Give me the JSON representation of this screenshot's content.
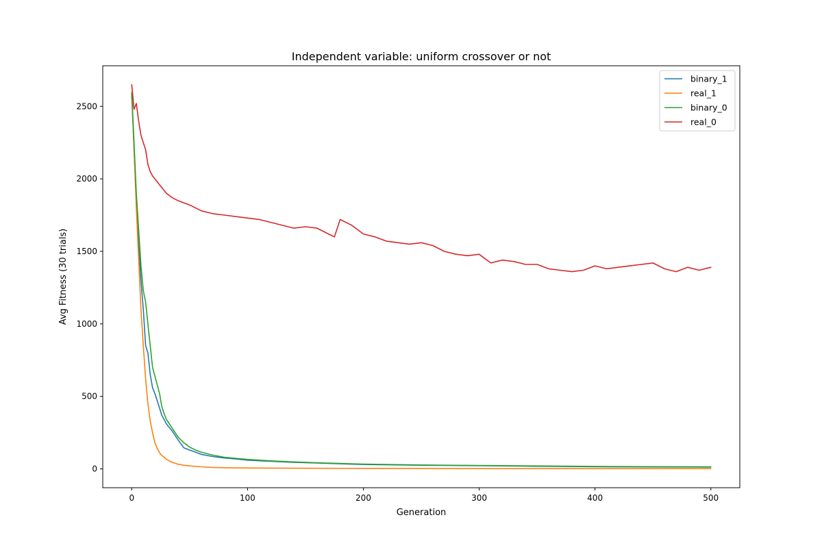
{
  "chart_data": {
    "type": "line",
    "title": "Independent variable: uniform crossover or not",
    "xlabel": "Generation",
    "ylabel": "Avg Fitness (30 trials)",
    "xlim": [
      -25,
      525
    ],
    "ylim": [
      -130,
      2780
    ],
    "xticks": [
      0,
      100,
      200,
      300,
      400,
      500
    ],
    "yticks": [
      0,
      500,
      1000,
      1500,
      2000,
      2500
    ],
    "grid": false,
    "legend_position": "top-right",
    "series": [
      {
        "name": "binary_1",
        "color": "#1f77b4",
        "points": [
          [
            0,
            2580
          ],
          [
            2,
            2200
          ],
          [
            4,
            1850
          ],
          [
            6,
            1550
          ],
          [
            8,
            1300
          ],
          [
            10,
            1100
          ],
          [
            12,
            850
          ],
          [
            14,
            800
          ],
          [
            16,
            650
          ],
          [
            18,
            560
          ],
          [
            20,
            520
          ],
          [
            22,
            470
          ],
          [
            24,
            420
          ],
          [
            26,
            370
          ],
          [
            28,
            340
          ],
          [
            30,
            310
          ],
          [
            35,
            260
          ],
          [
            40,
            200
          ],
          [
            45,
            145
          ],
          [
            50,
            130
          ],
          [
            55,
            115
          ],
          [
            60,
            100
          ],
          [
            70,
            85
          ],
          [
            80,
            75
          ],
          [
            90,
            68
          ],
          [
            100,
            60
          ],
          [
            120,
            52
          ],
          [
            140,
            45
          ],
          [
            160,
            40
          ],
          [
            180,
            35
          ],
          [
            200,
            30
          ],
          [
            250,
            25
          ],
          [
            300,
            22
          ],
          [
            350,
            18
          ],
          [
            400,
            15
          ],
          [
            450,
            13
          ],
          [
            500,
            12
          ]
        ]
      },
      {
        "name": "real_1",
        "color": "#ff7f0e",
        "points": [
          [
            0,
            2600
          ],
          [
            2,
            2200
          ],
          [
            4,
            1800
          ],
          [
            6,
            1450
          ],
          [
            8,
            1100
          ],
          [
            10,
            850
          ],
          [
            12,
            620
          ],
          [
            14,
            450
          ],
          [
            16,
            330
          ],
          [
            18,
            250
          ],
          [
            20,
            180
          ],
          [
            22,
            140
          ],
          [
            25,
            100
          ],
          [
            28,
            80
          ],
          [
            30,
            65
          ],
          [
            35,
            45
          ],
          [
            40,
            32
          ],
          [
            45,
            25
          ],
          [
            50,
            20
          ],
          [
            60,
            14
          ],
          [
            70,
            10
          ],
          [
            80,
            8
          ],
          [
            100,
            6
          ],
          [
            150,
            4
          ],
          [
            200,
            3
          ],
          [
            300,
            2
          ],
          [
            400,
            2
          ],
          [
            500,
            2
          ]
        ]
      },
      {
        "name": "binary_0",
        "color": "#2ca02c",
        "points": [
          [
            0,
            2590
          ],
          [
            2,
            2250
          ],
          [
            4,
            1900
          ],
          [
            6,
            1650
          ],
          [
            8,
            1400
          ],
          [
            10,
            1230
          ],
          [
            12,
            1150
          ],
          [
            14,
            1000
          ],
          [
            16,
            850
          ],
          [
            18,
            700
          ],
          [
            20,
            640
          ],
          [
            22,
            580
          ],
          [
            24,
            520
          ],
          [
            26,
            430
          ],
          [
            28,
            380
          ],
          [
            30,
            340
          ],
          [
            35,
            280
          ],
          [
            40,
            220
          ],
          [
            45,
            180
          ],
          [
            50,
            150
          ],
          [
            55,
            130
          ],
          [
            60,
            115
          ],
          [
            70,
            95
          ],
          [
            80,
            80
          ],
          [
            90,
            72
          ],
          [
            100,
            65
          ],
          [
            120,
            55
          ],
          [
            140,
            48
          ],
          [
            160,
            42
          ],
          [
            180,
            37
          ],
          [
            200,
            33
          ],
          [
            250,
            27
          ],
          [
            300,
            23
          ],
          [
            350,
            20
          ],
          [
            400,
            17
          ],
          [
            450,
            15
          ],
          [
            500,
            14
          ]
        ]
      },
      {
        "name": "real_0",
        "color": "#d62728",
        "points": [
          [
            0,
            2650
          ],
          [
            2,
            2480
          ],
          [
            4,
            2520
          ],
          [
            6,
            2400
          ],
          [
            8,
            2300
          ],
          [
            10,
            2250
          ],
          [
            12,
            2200
          ],
          [
            14,
            2100
          ],
          [
            16,
            2050
          ],
          [
            18,
            2020
          ],
          [
            20,
            2000
          ],
          [
            25,
            1950
          ],
          [
            30,
            1900
          ],
          [
            35,
            1870
          ],
          [
            40,
            1850
          ],
          [
            50,
            1820
          ],
          [
            60,
            1780
          ],
          [
            70,
            1760
          ],
          [
            80,
            1750
          ],
          [
            90,
            1740
          ],
          [
            100,
            1730
          ],
          [
            110,
            1720
          ],
          [
            120,
            1700
          ],
          [
            130,
            1680
          ],
          [
            140,
            1660
          ],
          [
            150,
            1670
          ],
          [
            160,
            1660
          ],
          [
            170,
            1620
          ],
          [
            175,
            1600
          ],
          [
            180,
            1720
          ],
          [
            190,
            1680
          ],
          [
            200,
            1620
          ],
          [
            210,
            1600
          ],
          [
            220,
            1570
          ],
          [
            230,
            1560
          ],
          [
            240,
            1550
          ],
          [
            250,
            1560
          ],
          [
            260,
            1540
          ],
          [
            270,
            1500
          ],
          [
            280,
            1480
          ],
          [
            290,
            1470
          ],
          [
            300,
            1480
          ],
          [
            310,
            1420
          ],
          [
            320,
            1440
          ],
          [
            330,
            1430
          ],
          [
            340,
            1410
          ],
          [
            350,
            1410
          ],
          [
            360,
            1380
          ],
          [
            370,
            1370
          ],
          [
            380,
            1360
          ],
          [
            390,
            1370
          ],
          [
            400,
            1400
          ],
          [
            410,
            1380
          ],
          [
            420,
            1390
          ],
          [
            430,
            1400
          ],
          [
            440,
            1410
          ],
          [
            450,
            1420
          ],
          [
            460,
            1380
          ],
          [
            470,
            1360
          ],
          [
            480,
            1390
          ],
          [
            490,
            1370
          ],
          [
            500,
            1390
          ]
        ]
      }
    ]
  }
}
